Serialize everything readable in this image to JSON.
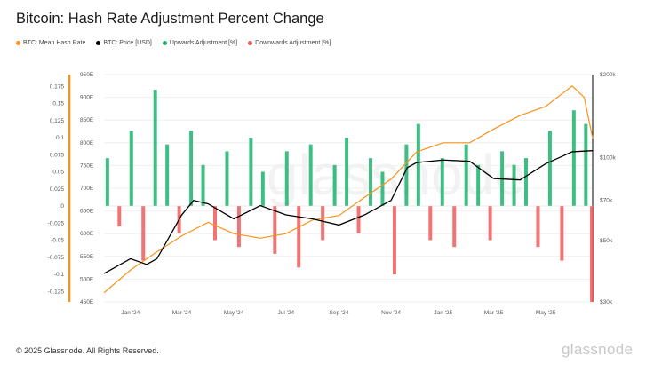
{
  "chart_data": {
    "type": "bar+line",
    "title": "Bitcoin: Hash Rate Adjustment Percent Change",
    "legend_position": "top-left",
    "grid": true,
    "colors": {
      "hash_rate": "#f7931a",
      "price": "#000000",
      "upwards": "#1db36e",
      "downwards": "#ee5a5a"
    },
    "series": [
      {
        "name": "BTC: Mean Hash Rate",
        "axis": "left-inner",
        "type": "line",
        "x": [
          "2023-12-01",
          "2024-01-01",
          "2024-02-01",
          "2024-03-01",
          "2024-04-01",
          "2024-05-01",
          "2024-06-01",
          "2024-07-01",
          "2024-08-01",
          "2024-09-01",
          "2024-10-01",
          "2024-11-01",
          "2024-12-01",
          "2025-01-01",
          "2025-02-01",
          "2025-03-01",
          "2025-04-01",
          "2025-05-01",
          "2025-06-01",
          "2025-06-15",
          "2025-06-25"
        ],
        "values": [
          470,
          520,
          560,
          595,
          625,
          600,
          590,
          600,
          630,
          640,
          680,
          720,
          780,
          800,
          800,
          830,
          860,
          880,
          925,
          900,
          810
        ]
      },
      {
        "name": "BTC: Price [USD]",
        "axis": "right",
        "type": "line",
        "x": [
          "2023-12-01",
          "2024-01-01",
          "2024-01-20",
          "2024-02-01",
          "2024-03-01",
          "2024-03-15",
          "2024-04-01",
          "2024-05-01",
          "2024-06-01",
          "2024-07-01",
          "2024-08-01",
          "2024-09-01",
          "2024-10-01",
          "2024-11-01",
          "2024-11-20",
          "2024-12-01",
          "2025-01-01",
          "2025-02-01",
          "2025-03-01",
          "2025-04-01",
          "2025-05-01",
          "2025-06-01",
          "2025-06-25"
        ],
        "values": [
          38000,
          43000,
          41000,
          43000,
          62000,
          70000,
          68000,
          60000,
          67000,
          62000,
          60000,
          57000,
          62000,
          70000,
          92000,
          96000,
          98000,
          97000,
          84000,
          83000,
          95000,
          105000,
          106000
        ]
      },
      {
        "name": "Upwards Adjustment [%]",
        "axis": "left-outer",
        "type": "bar"
      },
      {
        "name": "Downwards Adjustment [%]",
        "axis": "left-outer",
        "type": "bar"
      }
    ],
    "adjustments": {
      "x": [
        "2023-12-05",
        "2023-12-19",
        "2024-01-02",
        "2024-01-16",
        "2024-01-30",
        "2024-02-13",
        "2024-02-27",
        "2024-03-12",
        "2024-03-26",
        "2024-04-09",
        "2024-04-23",
        "2024-05-07",
        "2024-05-21",
        "2024-06-04",
        "2024-06-18",
        "2024-07-02",
        "2024-07-16",
        "2024-07-30",
        "2024-08-13",
        "2024-08-27",
        "2024-09-10",
        "2024-09-24",
        "2024-10-08",
        "2024-10-22",
        "2024-11-05",
        "2024-11-19",
        "2024-12-03",
        "2024-12-17",
        "2024-12-31",
        "2025-01-14",
        "2025-01-28",
        "2025-02-11",
        "2025-02-25",
        "2025-03-11",
        "2025-03-25",
        "2025-04-08",
        "2025-04-22",
        "2025-05-06",
        "2025-05-20",
        "2025-06-03",
        "2025-06-17",
        "2025-06-24"
      ],
      "values": [
        0.07,
        -0.03,
        0.11,
        -0.08,
        0.17,
        0.09,
        -0.04,
        0.11,
        0.06,
        -0.05,
        0.08,
        -0.06,
        0.1,
        0.05,
        -0.07,
        0.08,
        -0.09,
        0.09,
        -0.05,
        0.06,
        0.1,
        -0.04,
        0.07,
        0.05,
        -0.1,
        0.09,
        0.12,
        -0.05,
        0.07,
        -0.06,
        0.09,
        0.06,
        -0.05,
        0.08,
        0.06,
        0.07,
        -0.06,
        0.11,
        -0.08,
        0.14,
        0.12,
        -0.14
      ]
    },
    "axes": {
      "x_ticks": [
        "Jan '24",
        "Mar '24",
        "May '24",
        "Jul '24",
        "Sep '24",
        "Nov '24",
        "Jan '25",
        "Mar '25",
        "May '25"
      ],
      "x_tick_dates": [
        "2024-01-01",
        "2024-03-01",
        "2024-05-01",
        "2024-07-01",
        "2024-09-01",
        "2024-11-01",
        "2025-01-01",
        "2025-03-01",
        "2025-05-01"
      ],
      "xlim": [
        "2023-12-01",
        "2025-06-25"
      ],
      "left_outer_ticks": [
        "0.175",
        "0.15",
        "0.125",
        "0.1",
        "0.075",
        "0.05",
        "0.025",
        "0",
        "-0.025",
        "-0.05",
        "-0.075",
        "-0.1",
        "-0.125"
      ],
      "left_outer_ylim": [
        -0.13,
        0.185
      ],
      "left_inner_ticks": [
        "950E",
        "900E",
        "850E",
        "800E",
        "750E",
        "700E",
        "650E",
        "600E",
        "550E",
        "500E",
        "450E"
      ],
      "left_inner_ylim": [
        450,
        950
      ],
      "right_ticks": [
        "$200k",
        "$100k",
        "$70k",
        "$50k",
        "$30k"
      ],
      "right_tick_values": [
        200000,
        100000,
        70000,
        50000,
        30000
      ],
      "right_scale": "log",
      "right_ylim": [
        30000,
        200000
      ]
    }
  },
  "footer": "© 2025 Glassnode. All Rights Reserved.",
  "logo": "glassnode"
}
